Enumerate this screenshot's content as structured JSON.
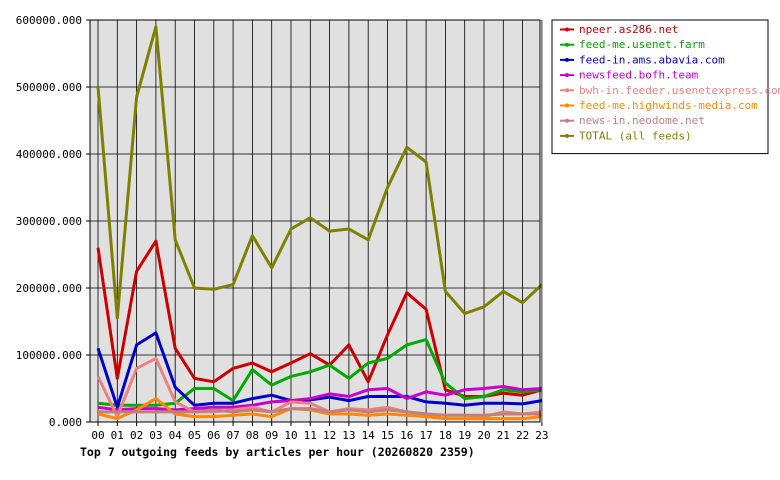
{
  "chart_data": {
    "type": "line",
    "title": "Top 7 outgoing feeds by articles per hour (20260820 2359)",
    "xlabel": "",
    "ylabel": "",
    "x": [
      "00",
      "01",
      "02",
      "03",
      "04",
      "05",
      "06",
      "07",
      "08",
      "09",
      "10",
      "11",
      "12",
      "13",
      "14",
      "15",
      "16",
      "17",
      "18",
      "19",
      "20",
      "21",
      "22",
      "23"
    ],
    "y_ticks": [
      "0.000",
      "100000.000",
      "200000.000",
      "300000.000",
      "400000.000",
      "500000.000",
      "600000.000"
    ],
    "ylim": [
      0,
      600000
    ],
    "grid": true,
    "legend_position": "top-right",
    "background": "#e0e0e0",
    "series": [
      {
        "name": "npeer.as286.net",
        "color": "#cc0000",
        "values": [
          260000,
          65000,
          225000,
          270000,
          110000,
          65000,
          60000,
          80000,
          88000,
          75000,
          88000,
          102000,
          85000,
          115000,
          60000,
          130000,
          193000,
          168000,
          48000,
          38000,
          38000,
          43000,
          40000,
          48000
        ]
      },
      {
        "name": "feed-me.usenet.farm",
        "color": "#00aa00",
        "values": [
          28000,
          25000,
          25000,
          25000,
          28000,
          50000,
          50000,
          32000,
          78000,
          55000,
          68000,
          75000,
          85000,
          65000,
          88000,
          95000,
          115000,
          123000,
          58000,
          35000,
          38000,
          48000,
          45000,
          48000
        ]
      },
      {
        "name": "feed-in.ams.abavia.com",
        "color": "#0000cc",
        "values": [
          110000,
          22000,
          115000,
          133000,
          52000,
          25000,
          28000,
          28000,
          35000,
          40000,
          32000,
          33000,
          37000,
          32000,
          38000,
          38000,
          38000,
          30000,
          28000,
          25000,
          28000,
          28000,
          27000,
          32000
        ]
      },
      {
        "name": "newsfeed.bofh.team",
        "color": "#cc00cc",
        "values": [
          22000,
          18000,
          20000,
          20000,
          18000,
          20000,
          22000,
          22000,
          25000,
          30000,
          32000,
          35000,
          42000,
          38000,
          48000,
          50000,
          35000,
          45000,
          40000,
          48000,
          50000,
          53000,
          48000,
          50000
        ]
      },
      {
        "name": "bwh-in.feeder.usenetexpress.com",
        "color": "#f08080",
        "values": [
          68000,
          8000,
          80000,
          95000,
          30000,
          15000,
          15000,
          18000,
          22000,
          15000,
          30000,
          28000,
          15000,
          20000,
          18000,
          22000,
          15000,
          12000,
          10000,
          10000,
          8000,
          15000,
          12000,
          15000
        ]
      },
      {
        "name": "feed-me.highwinds-media.com",
        "color": "#ff8800",
        "values": [
          12000,
          5000,
          18000,
          35000,
          12000,
          8000,
          8000,
          10000,
          12000,
          8000,
          20000,
          18000,
          12000,
          12000,
          10000,
          12000,
          10000,
          8000,
          5000,
          5000,
          5000,
          5000,
          5000,
          8000
        ]
      },
      {
        "name": "news-in.neodome.net",
        "color": "#c08080",
        "values": [
          15000,
          15000,
          15000,
          15000,
          15000,
          15000,
          18000,
          15000,
          18000,
          15000,
          20000,
          20000,
          15000,
          18000,
          15000,
          18000,
          15000,
          12000,
          10000,
          10000,
          10000,
          12000,
          12000,
          12000
        ]
      },
      {
        "name": "TOTAL (all feeds)",
        "color": "#808000",
        "values": [
          500000,
          155000,
          485000,
          590000,
          272000,
          200000,
          198000,
          205000,
          278000,
          230000,
          288000,
          305000,
          285000,
          288000,
          272000,
          350000,
          410000,
          388000,
          195000,
          162000,
          172000,
          195000,
          178000,
          205000
        ]
      }
    ]
  }
}
